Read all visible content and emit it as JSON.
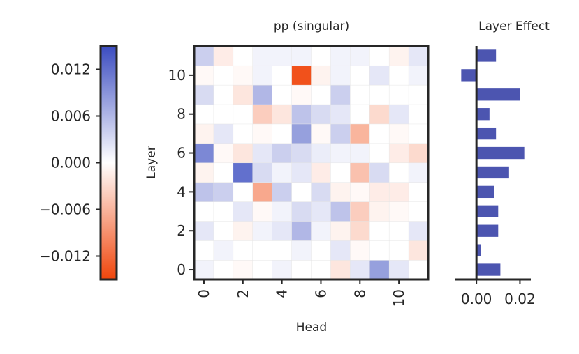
{
  "chart_data": [
    {
      "type": "heatmap",
      "title": "pp (singular)",
      "xlabel": "Head",
      "ylabel": "Layer",
      "x_categories": [
        0,
        1,
        2,
        3,
        4,
        5,
        6,
        7,
        8,
        9,
        10,
        11
      ],
      "y_categories": [
        0,
        1,
        2,
        3,
        4,
        5,
        6,
        7,
        8,
        9,
        10,
        11
      ],
      "x_tick_labels": [
        "0",
        "2",
        "4",
        "6",
        "8",
        "10"
      ],
      "y_tick_labels": [
        "0",
        "2",
        "4",
        "6",
        "8",
        "10"
      ],
      "color_range": [
        -0.015,
        0.015
      ],
      "colorbar_ticks": [
        "0.012",
        "0.006",
        "0.000",
        "−0.006",
        "−0.012"
      ],
      "colors": {
        "positive": "#3b4cc0",
        "negative": "#f0450b",
        "zero": "#ffffff"
      },
      "values": [
        [
          0.001,
          0.0,
          -0.0005,
          0.0,
          0.001,
          0.0,
          0.0,
          -0.002,
          0.002,
          0.008,
          0.002,
          0.0
        ],
        [
          0.0,
          0.001,
          0.0,
          0.0,
          0.0,
          0.001,
          0.0,
          0.002,
          -0.0005,
          0.0,
          0.0,
          -0.002
        ],
        [
          0.002,
          0.0,
          -0.001,
          0.001,
          0.002,
          0.006,
          0.001,
          -0.001,
          -0.003,
          0.0,
          0.0,
          0.002
        ],
        [
          0.0,
          0.0,
          0.002,
          -0.0005,
          0.001,
          0.003,
          0.002,
          0.005,
          -0.004,
          -0.001,
          -0.0005,
          0.0
        ],
        [
          0.005,
          0.004,
          0.0,
          -0.007,
          0.004,
          0.0,
          0.003,
          -0.001,
          -0.0005,
          -0.0015,
          -0.0015,
          0.0
        ],
        [
          -0.001,
          0.0,
          0.012,
          0.003,
          0.001,
          0.002,
          -0.0015,
          0.0,
          -0.005,
          0.003,
          0.0,
          0.001
        ],
        [
          0.01,
          -0.0005,
          -0.002,
          0.002,
          0.004,
          0.003,
          0.0015,
          0.001,
          0.001,
          0.0,
          -0.0015,
          -0.003
        ],
        [
          -0.001,
          0.002,
          0.0,
          -0.0005,
          0.0,
          0.008,
          -0.0005,
          0.004,
          -0.006,
          0.0,
          -0.0005,
          0.0
        ],
        [
          0.0,
          0.0,
          0.0,
          -0.004,
          -0.002,
          0.005,
          0.003,
          0.002,
          0.0,
          -0.003,
          0.002,
          0.0
        ],
        [
          0.003,
          0.0,
          -0.002,
          0.006,
          0.0,
          -0.0005,
          0.0,
          0.004,
          0.0,
          0.0,
          0.0,
          0.0
        ],
        [
          -0.0005,
          0.0,
          -0.0005,
          0.001,
          0.0,
          -0.014,
          -0.001,
          0.001,
          0.0,
          0.002,
          0.0,
          0.001
        ],
        [
          0.004,
          -0.0015,
          0.0,
          0.001,
          0.001,
          0.001,
          0.0,
          0.001,
          0.001,
          0.0,
          -0.001,
          0.002
        ]
      ]
    },
    {
      "type": "bar",
      "orientation": "horizontal",
      "title": "Layer Effect",
      "categories": [
        0,
        1,
        2,
        3,
        4,
        5,
        6,
        7,
        8,
        9,
        10,
        11
      ],
      "values": [
        0.011,
        0.002,
        0.01,
        0.01,
        0.008,
        0.015,
        0.022,
        0.009,
        0.006,
        0.02,
        -0.007,
        0.009
      ],
      "xlim": [
        -0.01,
        0.025
      ],
      "x_tick_labels": [
        "0.00",
        "0.02"
      ],
      "x_tick_values": [
        0.0,
        0.02
      ],
      "bar_color": "#4c55b0"
    }
  ]
}
